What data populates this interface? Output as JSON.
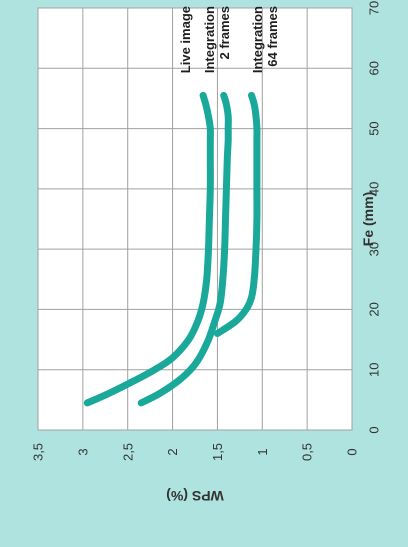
{
  "chart_data": {
    "type": "line",
    "orientation": "rotated-90",
    "xlabel": "Fe (mm)",
    "ylabel": "WPS (%)",
    "xlim": [
      0,
      70
    ],
    "ylim": [
      0,
      3.5
    ],
    "x_ticks": [
      "0",
      "10",
      "20",
      "30",
      "40",
      "50",
      "60",
      "70"
    ],
    "y_ticks": [
      "0",
      "0,5",
      "1",
      "1,5",
      "2",
      "2,5",
      "3",
      "3,5"
    ],
    "grid": true,
    "colors": {
      "background": "#aee3df",
      "plot_area": "#ffffff",
      "grid": "#a0a0a0",
      "line": "#1aa89a"
    },
    "series": [
      {
        "name": "Live image",
        "x": [
          4.5,
          6,
          8,
          10,
          12,
          15,
          18,
          21,
          25,
          30,
          35,
          40,
          45,
          48,
          50,
          52,
          54,
          55.5
        ],
        "y": [
          2.95,
          2.72,
          2.45,
          2.2,
          2.0,
          1.82,
          1.72,
          1.66,
          1.62,
          1.6,
          1.59,
          1.58,
          1.58,
          1.58,
          1.58,
          1.6,
          1.63,
          1.66
        ]
      },
      {
        "name_lines": [
          "Integration",
          "2 frames"
        ],
        "x": [
          4.5,
          6,
          8,
          10,
          12,
          15,
          18,
          21,
          25,
          30,
          35,
          40,
          45,
          48,
          50,
          52,
          54,
          55.5
        ],
        "y": [
          2.35,
          2.15,
          1.95,
          1.8,
          1.7,
          1.6,
          1.53,
          1.47,
          1.44,
          1.42,
          1.41,
          1.4,
          1.39,
          1.38,
          1.38,
          1.38,
          1.4,
          1.43
        ]
      },
      {
        "name_lines": [
          "Integration",
          "64  frames"
        ],
        "x": [
          16,
          18,
          20,
          22,
          25,
          30,
          35,
          40,
          45,
          48,
          50,
          52,
          54,
          55.5
        ],
        "y": [
          1.5,
          1.3,
          1.18,
          1.12,
          1.09,
          1.07,
          1.06,
          1.06,
          1.06,
          1.06,
          1.06,
          1.07,
          1.09,
          1.12
        ]
      }
    ]
  }
}
